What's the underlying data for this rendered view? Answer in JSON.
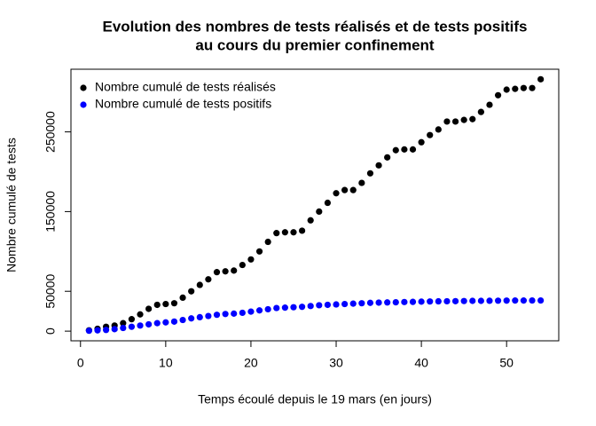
{
  "chart_data": {
    "type": "scatter",
    "title": [
      "Evolution des nombres de tests réalisés et de tests positifs",
      "au cours du premier confinement"
    ],
    "xlabel": "Temps écoulé depuis le 19 mars (en jours)",
    "ylabel": "Nombre cumulé de tests",
    "x": [
      1,
      2,
      3,
      4,
      5,
      6,
      7,
      8,
      9,
      10,
      11,
      12,
      13,
      14,
      15,
      16,
      17,
      18,
      19,
      20,
      21,
      22,
      23,
      24,
      25,
      26,
      27,
      28,
      29,
      30,
      31,
      32,
      33,
      34,
      35,
      36,
      37,
      38,
      39,
      40,
      41,
      42,
      43,
      44,
      45,
      46,
      47,
      48,
      49,
      50,
      51,
      52,
      53,
      54
    ],
    "series": [
      {
        "name": "Nombre cumulé de tests réalisés",
        "color": "#000000",
        "values": [
          1000,
          3000,
          5500,
          7000,
          10000,
          15000,
          21000,
          28000,
          33000,
          34000,
          35000,
          42000,
          50000,
          58000,
          65000,
          74000,
          75000,
          76000,
          83000,
          90000,
          100000,
          112000,
          123000,
          124000,
          124000,
          126000,
          139000,
          150000,
          161000,
          173000,
          177000,
          177000,
          186000,
          198000,
          208000,
          218000,
          227000,
          228000,
          228000,
          237000,
          246000,
          253000,
          263000,
          263000,
          265000,
          266000,
          275000,
          284000,
          296000,
          303000,
          304000,
          305000,
          305000,
          316000
        ]
      },
      {
        "name": "Nombre cumulé de tests positifs",
        "color": "#0000ff",
        "values": [
          500,
          1000,
          1500,
          2500,
          4000,
          5500,
          7000,
          8500,
          10000,
          11000,
          12000,
          14000,
          16000,
          17500,
          19000,
          20500,
          21500,
          22000,
          23000,
          24500,
          26000,
          27500,
          29000,
          29500,
          30000,
          30500,
          31500,
          32500,
          33000,
          33500,
          34000,
          34500,
          35000,
          35500,
          35800,
          36000,
          36200,
          36500,
          36700,
          37000,
          37200,
          37400,
          37500,
          37600,
          37800,
          38000,
          38000,
          38100,
          38200,
          38300,
          38400,
          38400,
          38500,
          38500
        ]
      }
    ],
    "xlim": [
      -1.12,
      56.12
    ],
    "ylim": [
      -12120,
      328620
    ],
    "xticks": [
      0,
      10,
      20,
      30,
      40,
      50
    ],
    "yticks": [
      0,
      50000,
      150000,
      250000
    ],
    "legend": "top-left"
  }
}
